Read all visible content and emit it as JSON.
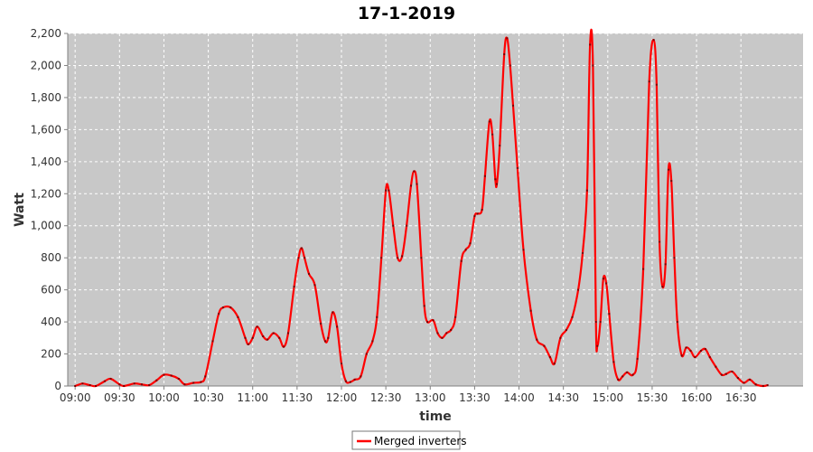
{
  "chart_data": {
    "type": "line",
    "title": "17-1-2019",
    "xlabel": "time",
    "ylabel": "Watt",
    "xlim": [
      "08:55",
      "17:12"
    ],
    "ylim": [
      0,
      2200
    ],
    "yticks": [
      0,
      200,
      400,
      600,
      800,
      1000,
      1200,
      1400,
      1600,
      1800,
      2000,
      2200
    ],
    "ytick_labels": [
      "0",
      "200",
      "400",
      "600",
      "800",
      "1,000",
      "1,200",
      "1,400",
      "1,600",
      "1,800",
      "2,000",
      "2,200"
    ],
    "xticks": [
      "09:00",
      "09:30",
      "10:00",
      "10:30",
      "11:00",
      "11:30",
      "12:00",
      "12:30",
      "13:00",
      "13:30",
      "14:00",
      "14:30",
      "15:00",
      "15:30",
      "16:00",
      "16:30"
    ],
    "grid": true,
    "legend_position": "bottom-center",
    "plot_background": "#c8c8c8",
    "series": [
      {
        "name": "Merged inverters",
        "color": "#ff0000",
        "points": [
          [
            "09:00",
            0
          ],
          [
            "09:05",
            15
          ],
          [
            "09:10",
            5
          ],
          [
            "09:14",
            0
          ],
          [
            "09:20",
            30
          ],
          [
            "09:24",
            45
          ],
          [
            "09:30",
            10
          ],
          [
            "09:33",
            0
          ],
          [
            "09:40",
            15
          ],
          [
            "09:45",
            10
          ],
          [
            "09:50",
            5
          ],
          [
            "09:55",
            35
          ],
          [
            "10:00",
            70
          ],
          [
            "10:05",
            65
          ],
          [
            "10:10",
            45
          ],
          [
            "10:14",
            10
          ],
          [
            "10:20",
            20
          ],
          [
            "10:25",
            25
          ],
          [
            "10:28",
            60
          ],
          [
            "10:33",
            280
          ],
          [
            "10:37",
            450
          ],
          [
            "10:40",
            490
          ],
          [
            "10:45",
            490
          ],
          [
            "10:50",
            430
          ],
          [
            "10:55",
            300
          ],
          [
            "10:57",
            260
          ],
          [
            "11:00",
            300
          ],
          [
            "11:03",
            370
          ],
          [
            "11:07",
            310
          ],
          [
            "11:10",
            290
          ],
          [
            "11:14",
            330
          ],
          [
            "11:18",
            300
          ],
          [
            "11:21",
            245
          ],
          [
            "11:24",
            330
          ],
          [
            "11:28",
            620
          ],
          [
            "11:31",
            800
          ],
          [
            "11:33",
            860
          ],
          [
            "11:35",
            800
          ],
          [
            "11:38",
            700
          ],
          [
            "11:42",
            630
          ],
          [
            "11:46",
            390
          ],
          [
            "11:49",
            280
          ],
          [
            "11:51",
            300
          ],
          [
            "11:54",
            460
          ],
          [
            "11:57",
            370
          ],
          [
            "12:00",
            140
          ],
          [
            "12:03",
            30
          ],
          [
            "12:06",
            25
          ],
          [
            "12:09",
            40
          ],
          [
            "12:13",
            60
          ],
          [
            "12:17",
            200
          ],
          [
            "12:21",
            280
          ],
          [
            "12:24",
            430
          ],
          [
            "12:27",
            800
          ],
          [
            "12:30",
            1220
          ],
          [
            "12:32",
            1220
          ],
          [
            "12:35",
            1000
          ],
          [
            "12:38",
            800
          ],
          [
            "12:41",
            810
          ],
          [
            "12:44",
            1000
          ],
          [
            "12:47",
            1250
          ],
          [
            "12:49",
            1340
          ],
          [
            "12:51",
            1260
          ],
          [
            "12:54",
            800
          ],
          [
            "12:56",
            500
          ],
          [
            "12:58",
            400
          ],
          [
            "13:02",
            410
          ],
          [
            "13:05",
            330
          ],
          [
            "13:08",
            300
          ],
          [
            "13:11",
            330
          ],
          [
            "13:14",
            350
          ],
          [
            "13:17",
            430
          ],
          [
            "13:21",
            780
          ],
          [
            "13:24",
            850
          ],
          [
            "13:27",
            890
          ],
          [
            "13:30",
            1060
          ],
          [
            "13:32",
            1075
          ],
          [
            "13:35",
            1100
          ],
          [
            "13:37",
            1310
          ],
          [
            "13:40",
            1650
          ],
          [
            "13:42",
            1570
          ],
          [
            "13:44",
            1290
          ],
          [
            "13:45",
            1260
          ],
          [
            "13:47",
            1500
          ],
          [
            "13:50",
            2070
          ],
          [
            "13:52",
            2170
          ],
          [
            "13:54",
            2000
          ],
          [
            "13:56",
            1750
          ],
          [
            "13:59",
            1360
          ],
          [
            "14:03",
            850
          ],
          [
            "14:08",
            470
          ],
          [
            "14:12",
            290
          ],
          [
            "14:17",
            250
          ],
          [
            "14:21",
            180
          ],
          [
            "14:24",
            140
          ],
          [
            "14:28",
            300
          ],
          [
            "14:32",
            350
          ],
          [
            "14:36",
            430
          ],
          [
            "14:40",
            600
          ],
          [
            "14:43",
            830
          ],
          [
            "14:46",
            1220
          ],
          [
            "14:48",
            2130
          ],
          [
            "14:50",
            2000
          ],
          [
            "14:52",
            400
          ],
          [
            "14:53",
            250
          ],
          [
            "14:55",
            400
          ],
          [
            "14:57",
            670
          ],
          [
            "14:59",
            640
          ],
          [
            "15:01",
            450
          ],
          [
            "15:04",
            150
          ],
          [
            "15:07",
            40
          ],
          [
            "15:10",
            60
          ],
          [
            "15:13",
            85
          ],
          [
            "15:17",
            70
          ],
          [
            "15:20",
            170
          ],
          [
            "15:24",
            730
          ],
          [
            "15:28",
            1900
          ],
          [
            "15:31",
            2160
          ],
          [
            "15:33",
            1880
          ],
          [
            "15:35",
            900
          ],
          [
            "15:37",
            620
          ],
          [
            "15:39",
            760
          ],
          [
            "15:41",
            1350
          ],
          [
            "15:43",
            1280
          ],
          [
            "15:45",
            800
          ],
          [
            "15:47",
            400
          ],
          [
            "15:50",
            190
          ],
          [
            "15:53",
            240
          ],
          [
            "15:56",
            220
          ],
          [
            "15:59",
            180
          ],
          [
            "16:03",
            220
          ],
          [
            "16:06",
            230
          ],
          [
            "16:09",
            180
          ],
          [
            "16:13",
            120
          ],
          [
            "16:17",
            70
          ],
          [
            "16:20",
            75
          ],
          [
            "16:24",
            90
          ],
          [
            "16:28",
            50
          ],
          [
            "16:32",
            20
          ],
          [
            "16:36",
            40
          ],
          [
            "16:40",
            10
          ],
          [
            "16:45",
            0
          ],
          [
            "16:48",
            5
          ]
        ]
      }
    ]
  }
}
